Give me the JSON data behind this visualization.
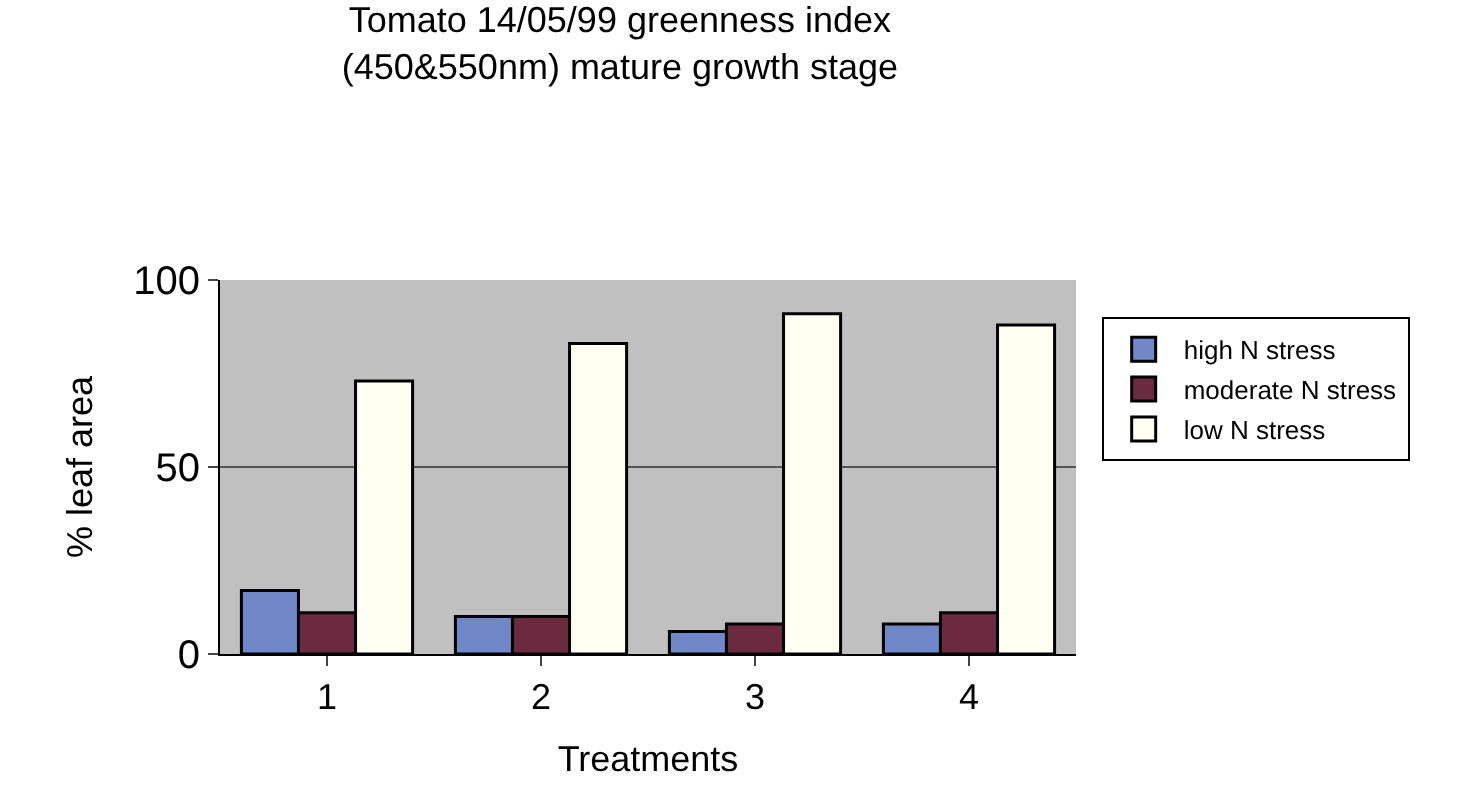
{
  "chart_data": {
    "type": "bar",
    "title": "Tomato 14/05/99 greenness index\n(450&550nm) mature growth stage",
    "xlabel": "Treatments",
    "ylabel": "% leaf area",
    "categories": [
      "1",
      "2",
      "3",
      "4"
    ],
    "series": [
      {
        "name": "high N stress",
        "color": "#7088c8",
        "values": [
          17,
          10,
          6,
          8
        ]
      },
      {
        "name": "moderate N stress",
        "color": "#6b2a40",
        "values": [
          11,
          10,
          8,
          11
        ]
      },
      {
        "name": "low N stress",
        "color": "#fffff2",
        "values": [
          73,
          83,
          91,
          88
        ]
      }
    ],
    "ylim": [
      0,
      100
    ],
    "yticks": [
      0,
      50,
      100
    ],
    "grid": "y",
    "legend": "right"
  }
}
